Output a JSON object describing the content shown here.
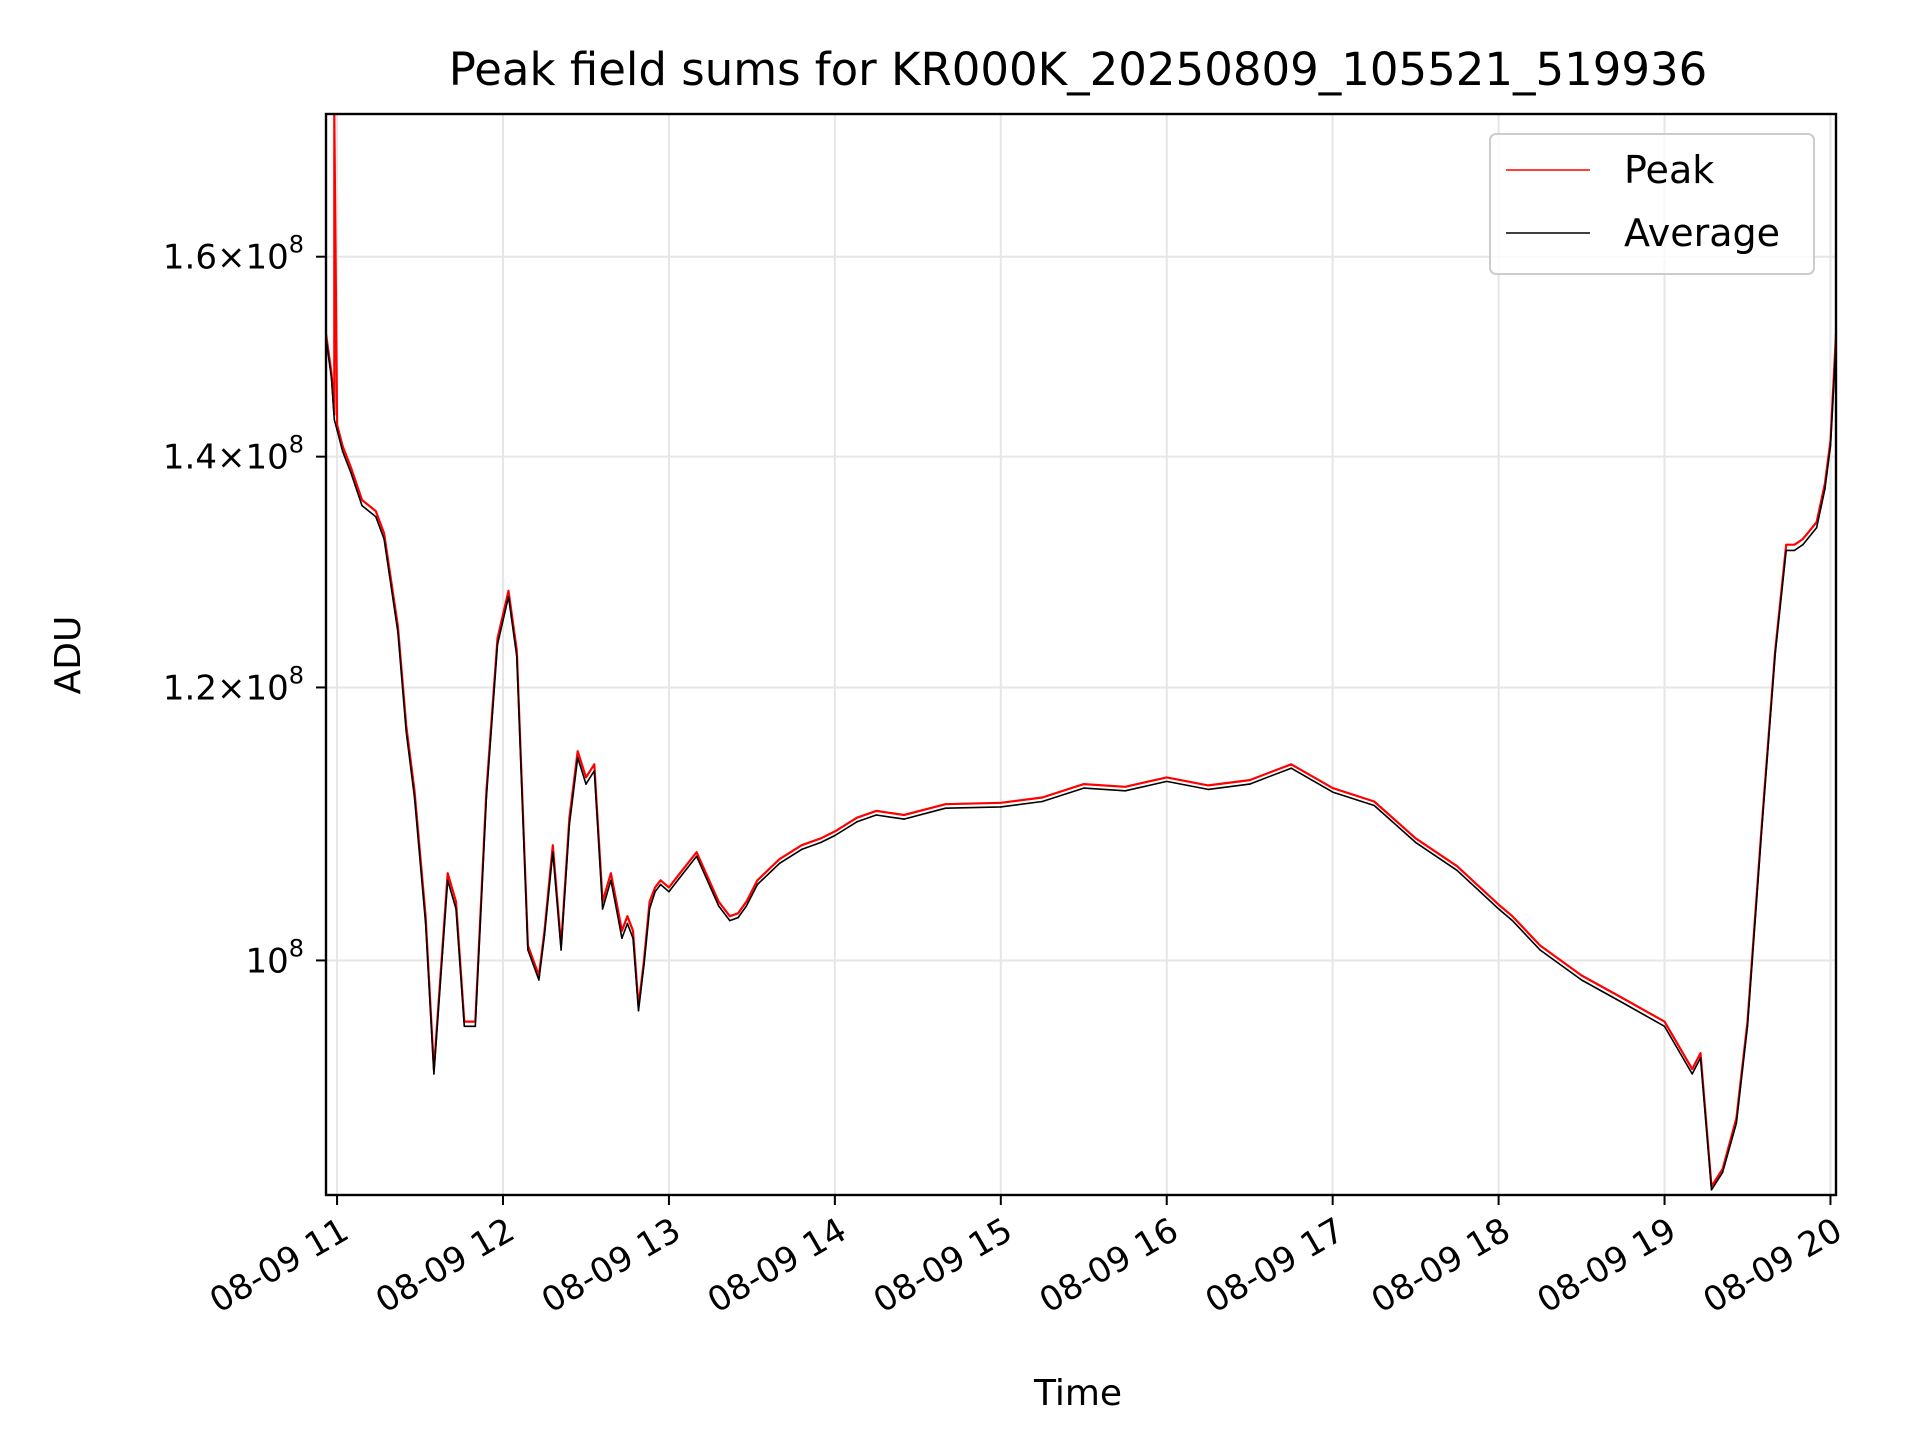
{
  "chart_data": {
    "type": "line",
    "title": "Peak field sums for KR000K_20250809_105521_519936",
    "xlabel": "Time",
    "ylabel": "ADU",
    "y_scale": "log",
    "ylim": [
      85500000,
      176000000
    ],
    "xlim": [
      "2025-08-09 10:56",
      "2025-08-09 20:02"
    ],
    "grid": true,
    "legend_position": "top-right",
    "x_ticks": [
      {
        "time": "2025-08-09 11:00",
        "label": "08-09 11"
      },
      {
        "time": "2025-08-09 12:00",
        "label": "08-09 12"
      },
      {
        "time": "2025-08-09 13:00",
        "label": "08-09 13"
      },
      {
        "time": "2025-08-09 14:00",
        "label": "08-09 14"
      },
      {
        "time": "2025-08-09 15:00",
        "label": "08-09 15"
      },
      {
        "time": "2025-08-09 16:00",
        "label": "08-09 16"
      },
      {
        "time": "2025-08-09 17:00",
        "label": "08-09 17"
      },
      {
        "time": "2025-08-09 18:00",
        "label": "08-09 18"
      },
      {
        "time": "2025-08-09 19:00",
        "label": "08-09 19"
      },
      {
        "time": "2025-08-09 20:00",
        "label": "08-09 20"
      }
    ],
    "y_ticks": [
      {
        "value": 100000000,
        "mantissa": "",
        "exponent": "8"
      },
      {
        "value": 120000000,
        "mantissa": "1.2",
        "exponent": "8"
      },
      {
        "value": 140000000,
        "mantissa": "1.4",
        "exponent": "8"
      },
      {
        "value": 160000000,
        "mantissa": "1.6",
        "exponent": "8"
      }
    ],
    "series": [
      {
        "name": "Peak",
        "color": "#ff0000",
        "x": [
          "2025-08-09 10:56",
          "2025-08-09 10:58",
          "2025-08-09 10:59",
          "2025-08-09 10:59",
          "2025-08-09 11:00",
          "2025-08-09 11:02",
          "2025-08-09 11:05",
          "2025-08-09 11:09",
          "2025-08-09 11:14",
          "2025-08-09 11:17",
          "2025-08-09 11:22",
          "2025-08-09 11:25",
          "2025-08-09 11:28",
          "2025-08-09 11:32",
          "2025-08-09 11:35",
          "2025-08-09 11:40",
          "2025-08-09 11:43",
          "2025-08-09 11:46",
          "2025-08-09 11:50",
          "2025-08-09 11:54",
          "2025-08-09 11:58",
          "2025-08-09 12:02",
          "2025-08-09 12:05",
          "2025-08-09 12:09",
          "2025-08-09 12:13",
          "2025-08-09 12:15",
          "2025-08-09 12:18",
          "2025-08-09 12:21",
          "2025-08-09 12:24",
          "2025-08-09 12:27",
          "2025-08-09 12:30",
          "2025-08-09 12:33",
          "2025-08-09 12:36",
          "2025-08-09 12:39",
          "2025-08-09 12:41",
          "2025-08-09 12:43",
          "2025-08-09 12:45",
          "2025-08-09 12:47",
          "2025-08-09 12:49",
          "2025-08-09 12:51",
          "2025-08-09 12:53",
          "2025-08-09 12:55",
          "2025-08-09 12:57",
          "2025-08-09 13:00",
          "2025-08-09 13:04",
          "2025-08-09 13:10",
          "2025-08-09 13:18",
          "2025-08-09 13:22",
          "2025-08-09 13:25",
          "2025-08-09 13:28",
          "2025-08-09 13:32",
          "2025-08-09 13:40",
          "2025-08-09 13:48",
          "2025-08-09 13:55",
          "2025-08-09 14:00",
          "2025-08-09 14:08",
          "2025-08-09 14:15",
          "2025-08-09 14:25",
          "2025-08-09 14:40",
          "2025-08-09 15:00",
          "2025-08-09 15:15",
          "2025-08-09 15:30",
          "2025-08-09 15:45",
          "2025-08-09 16:00",
          "2025-08-09 16:15",
          "2025-08-09 16:30",
          "2025-08-09 16:45",
          "2025-08-09 17:00",
          "2025-08-09 17:15",
          "2025-08-09 17:30",
          "2025-08-09 17:45",
          "2025-08-09 18:00",
          "2025-08-09 18:05",
          "2025-08-09 18:15",
          "2025-08-09 18:30",
          "2025-08-09 18:45",
          "2025-08-09 19:00",
          "2025-08-09 19:10",
          "2025-08-09 19:13",
          "2025-08-09 19:17",
          "2025-08-09 19:21",
          "2025-08-09 19:26",
          "2025-08-09 19:30",
          "2025-08-09 19:35",
          "2025-08-09 19:40",
          "2025-08-09 19:44",
          "2025-08-09 19:47",
          "2025-08-09 19:50",
          "2025-08-09 19:55",
          "2025-08-09 19:58",
          "2025-08-09 20:00",
          "2025-08-09 20:02"
        ],
        "values": [
          152000000,
          148000000,
          144000000,
          176000000,
          143000000,
          141000000,
          139000000,
          136000000,
          135000000,
          133000000,
          125000000,
          117000000,
          112000000,
          103000000,
          93000000,
          106000000,
          104000000,
          96000000,
          96000000,
          112000000,
          124000000,
          128000000,
          123000000,
          101000000,
          99000000,
          102000000,
          108000000,
          101000000,
          110000000,
          115000000,
          113000000,
          114000000,
          104000000,
          106000000,
          104000000,
          102000000,
          103000000,
          102000000,
          97000000,
          100000000,
          104000000,
          105000000,
          105500000,
          105000000,
          106000000,
          107500000,
          104000000,
          103000000,
          103200000,
          104000000,
          105500000,
          107000000,
          108000000,
          108500000,
          109000000,
          110000000,
          110500000,
          110200000,
          111000000,
          111100000,
          111500000,
          112500000,
          112300000,
          113000000,
          112400000,
          112800000,
          114000000,
          112200000,
          111200000,
          108500000,
          106500000,
          103800000,
          103000000,
          101000000,
          99000000,
          97500000,
          96000000,
          93000000,
          94000000,
          86000000,
          87000000,
          90000000,
          96000000,
          109000000,
          123000000,
          132000000,
          132000000,
          132500000,
          134000000,
          137500000,
          141500000,
          152000000
        ]
      },
      {
        "name": "Average",
        "color": "#000000",
        "x": [
          "2025-08-09 10:56",
          "2025-08-09 10:58",
          "2025-08-09 10:59",
          "2025-08-09 11:00",
          "2025-08-09 11:02",
          "2025-08-09 11:05",
          "2025-08-09 11:09",
          "2025-08-09 11:14",
          "2025-08-09 11:17",
          "2025-08-09 11:22",
          "2025-08-09 11:25",
          "2025-08-09 11:28",
          "2025-08-09 11:32",
          "2025-08-09 11:35",
          "2025-08-09 11:40",
          "2025-08-09 11:43",
          "2025-08-09 11:46",
          "2025-08-09 11:50",
          "2025-08-09 11:54",
          "2025-08-09 11:58",
          "2025-08-09 12:02",
          "2025-08-09 12:05",
          "2025-08-09 12:09",
          "2025-08-09 12:13",
          "2025-08-09 12:15",
          "2025-08-09 12:18",
          "2025-08-09 12:21",
          "2025-08-09 12:24",
          "2025-08-09 12:27",
          "2025-08-09 12:30",
          "2025-08-09 12:33",
          "2025-08-09 12:36",
          "2025-08-09 12:39",
          "2025-08-09 12:41",
          "2025-08-09 12:43",
          "2025-08-09 12:45",
          "2025-08-09 12:47",
          "2025-08-09 12:49",
          "2025-08-09 12:51",
          "2025-08-09 12:53",
          "2025-08-09 12:55",
          "2025-08-09 12:57",
          "2025-08-09 13:00",
          "2025-08-09 13:04",
          "2025-08-09 13:10",
          "2025-08-09 13:18",
          "2025-08-09 13:22",
          "2025-08-09 13:25",
          "2025-08-09 13:28",
          "2025-08-09 13:32",
          "2025-08-09 13:40",
          "2025-08-09 13:48",
          "2025-08-09 13:55",
          "2025-08-09 14:00",
          "2025-08-09 14:08",
          "2025-08-09 14:15",
          "2025-08-09 14:25",
          "2025-08-09 14:40",
          "2025-08-09 15:00",
          "2025-08-09 15:15",
          "2025-08-09 15:30",
          "2025-08-09 15:45",
          "2025-08-09 16:00",
          "2025-08-09 16:15",
          "2025-08-09 16:30",
          "2025-08-09 16:45",
          "2025-08-09 17:00",
          "2025-08-09 17:15",
          "2025-08-09 17:30",
          "2025-08-09 17:45",
          "2025-08-09 18:00",
          "2025-08-09 18:05",
          "2025-08-09 18:15",
          "2025-08-09 18:30",
          "2025-08-09 18:45",
          "2025-08-09 19:00",
          "2025-08-09 19:10",
          "2025-08-09 19:13",
          "2025-08-09 19:17",
          "2025-08-09 19:21",
          "2025-08-09 19:26",
          "2025-08-09 19:30",
          "2025-08-09 19:35",
          "2025-08-09 19:40",
          "2025-08-09 19:44",
          "2025-08-09 19:47",
          "2025-08-09 19:50",
          "2025-08-09 19:55",
          "2025-08-09 19:58",
          "2025-08-09 20:00",
          "2025-08-09 20:02"
        ],
        "values": [
          151500000,
          147500000,
          143500000,
          142500000,
          140500000,
          138500000,
          135500000,
          134500000,
          132500000,
          124500000,
          116500000,
          111500000,
          102500000,
          92700000,
          105500000,
          103500000,
          95700000,
          95700000,
          111500000,
          123500000,
          127500000,
          122500000,
          100700000,
          98700000,
          101700000,
          107500000,
          100700000,
          109500000,
          114500000,
          112500000,
          113500000,
          103500000,
          105500000,
          103500000,
          101500000,
          102500000,
          101500000,
          96700000,
          99700000,
          103500000,
          104700000,
          105200000,
          104700000,
          105700000,
          107200000,
          103700000,
          102700000,
          102900000,
          103700000,
          105200000,
          106700000,
          107700000,
          108200000,
          108700000,
          109700000,
          110200000,
          109900000,
          110700000,
          110800000,
          111200000,
          112200000,
          112000000,
          112700000,
          112100000,
          112500000,
          113700000,
          111900000,
          110900000,
          108200000,
          106200000,
          103500000,
          102700000,
          100700000,
          98700000,
          97200000,
          95700000,
          92700000,
          93700000,
          85800000,
          86800000,
          89700000,
          95700000,
          108700000,
          122700000,
          131500000,
          131500000,
          132000000,
          133500000,
          137000000,
          141000000,
          151000000
        ]
      }
    ]
  }
}
